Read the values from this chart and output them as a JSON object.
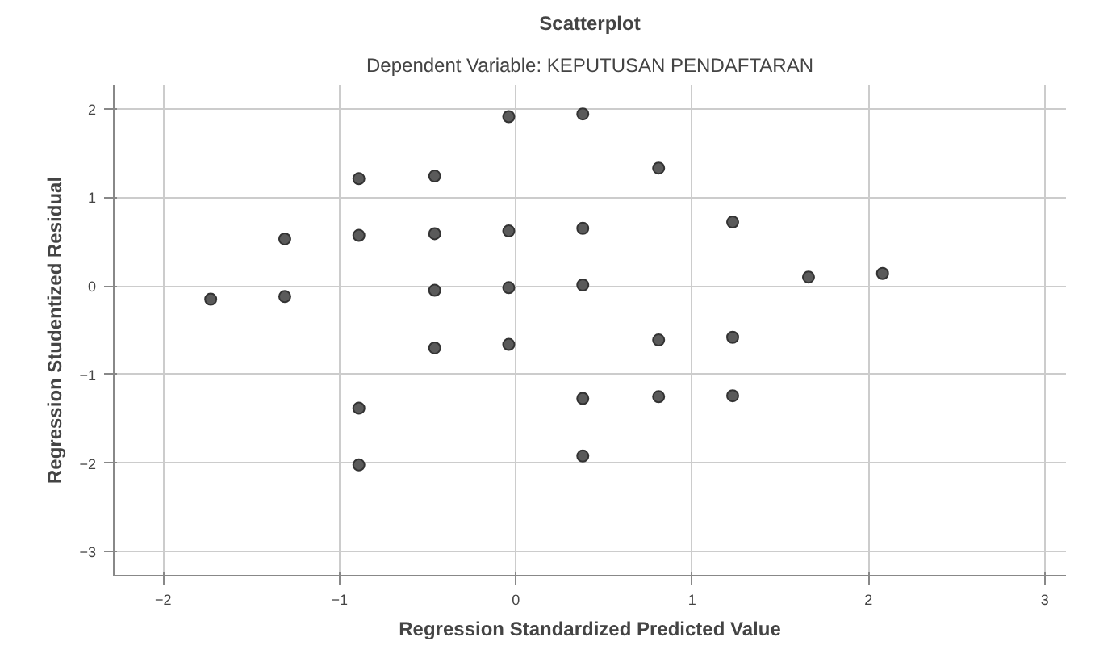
{
  "chart_data": {
    "type": "scatter",
    "title": "Scatterplot",
    "subtitle": "Dependent Variable: KEPUTUSAN PENDAFTARAN",
    "xlabel": "Regression Standardized Predicted Value",
    "ylabel": "Regression Studentized Residual",
    "x": [
      -1.73,
      -1.31,
      -1.31,
      -0.89,
      -0.89,
      -0.89,
      -0.89,
      -0.46,
      -0.46,
      -0.46,
      -0.46,
      -0.04,
      -0.04,
      -0.04,
      -0.04,
      0.38,
      0.38,
      0.38,
      0.38,
      0.38,
      0.81,
      0.81,
      0.81,
      1.23,
      1.23,
      1.23,
      1.66,
      2.08
    ],
    "series": [
      {
        "color": "#5a5a5a",
        "values": [
          -0.15,
          0.53,
          -0.12,
          1.21,
          0.57,
          -1.38,
          -2.02,
          1.24,
          0.59,
          -0.05,
          -0.7,
          1.91,
          0.62,
          -0.02,
          -0.66,
          1.94,
          0.65,
          0.01,
          -1.27,
          -1.92,
          1.33,
          -0.61,
          -1.25,
          0.72,
          -0.58,
          -1.24,
          0.1,
          0.14
        ]
      }
    ],
    "xlim": [
      -2.28,
      3.12
    ],
    "ylim": [
      -3.27,
      2.27
    ],
    "xticks": [
      -2,
      -1,
      0,
      1,
      2,
      3
    ],
    "yticks": [
      -3,
      -2,
      -1,
      0,
      1,
      2
    ],
    "grid": true,
    "marker": "circle"
  }
}
